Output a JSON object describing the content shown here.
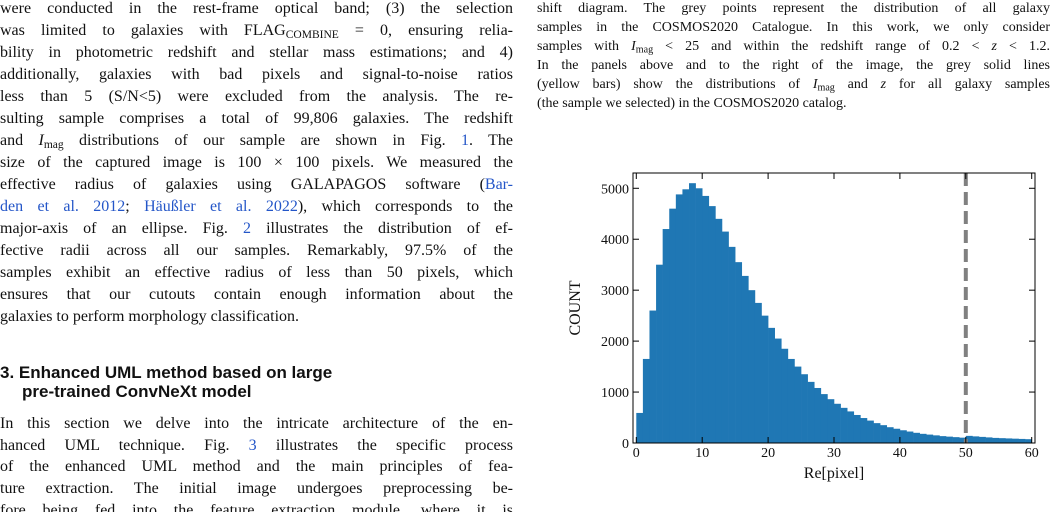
{
  "left": {
    "paragraph_1": [
      [
        "were conducted in the rest-frame optical band; (3) the selection"
      ],
      [
        "was limited to galaxies with FLAG",
        {
          "text": "COMBINE",
          "style": "sub"
        },
        " = 0, ensuring relia-"
      ],
      [
        "bility in photometric redshift and stellar mass estimations; and 4)"
      ],
      [
        "additionally, galaxies with bad pixels and signal-to-noise ratios"
      ],
      [
        "less than 5 (S/N<5) were excluded from the analysis. The re-"
      ],
      [
        "sulting sample comprises a total of 99,806 galaxies. The redshift"
      ],
      [
        "and ",
        {
          "text": "I",
          "style": "i"
        },
        {
          "text": "mag",
          "style": "sub"
        },
        " distributions of our sample are shown in Fig. ",
        {
          "text": "1",
          "style": "link"
        },
        ". The"
      ],
      [
        "size of the captured image is 100 × 100 pixels. We measured the"
      ],
      [
        "effective radius of galaxies using GALAPAGOS software (",
        {
          "text": "Bar-",
          "style": "link"
        }
      ],
      [
        {
          "text": "den et al. 2012",
          "style": "link"
        },
        "; ",
        {
          "text": "Häußler et al. 2022",
          "style": "link"
        },
        "), which corresponds to the"
      ],
      [
        "major-axis of an ellipse. Fig. ",
        {
          "text": "2",
          "style": "link"
        },
        " illustrates the distribution of ef-"
      ],
      [
        "fective radii across all our samples. Remarkably, 97.5% of the"
      ],
      [
        "samples exhibit an effective radius of less than 50 pixels, which"
      ],
      [
        "ensures that our cutouts contain enough information about the"
      ],
      [
        "galaxies to perform morphology classification."
      ]
    ],
    "heading": [
      [
        "3. Enhanced UML method based on large"
      ],
      [
        "pre-trained ConvNeXt model"
      ]
    ],
    "paragraph_2": [
      [
        "In this section we delve into the intricate architecture of the en-"
      ],
      [
        "hanced UML technique. Fig. ",
        {
          "text": "3",
          "style": "link"
        },
        " illustrates the specific process"
      ],
      [
        "of the enhanced UML method and the main principles of fea-"
      ],
      [
        "ture extraction. The initial image undergoes preprocessing be-"
      ],
      [
        "fore being fed into the feature extraction module, where it is"
      ]
    ]
  },
  "caption": [
    [
      "shift diagram. The grey points represent the distribution of all galaxy"
    ],
    [
      "samples in the COSMOS2020 Catalogue. In this work, we only consider"
    ],
    [
      "samples with ",
      {
        "text": "I",
        "style": "i"
      },
      {
        "text": "mag",
        "style": "sub"
      },
      " < 25 and within the redshift range of 0.2 < ",
      {
        "text": "z",
        "style": "i"
      },
      " < 1.2."
    ],
    [
      "In the panels above and to the right of the image, the grey solid lines"
    ],
    [
      "(yellow bars) show the distributions of ",
      {
        "text": "I",
        "style": "i"
      },
      {
        "text": "mag",
        "style": "sub"
      },
      " and ",
      {
        "text": "z",
        "style": "i"
      },
      " for all galaxy samples"
    ],
    [
      "(the sample we selected) in the COSMOS2020 catalog."
    ]
  ],
  "chart_data": {
    "type": "histogram",
    "xlabel": "Re[pixel]",
    "ylabel": "COUNT",
    "bins": [
      0,
      1,
      2,
      3,
      4,
      5,
      6,
      7,
      8,
      9,
      10,
      11,
      12,
      13,
      14,
      15,
      16,
      17,
      18,
      19,
      20,
      21,
      22,
      23,
      24,
      25,
      26,
      27,
      28,
      29,
      30,
      31,
      32,
      33,
      34,
      35,
      36,
      37,
      38,
      39,
      40,
      41,
      42,
      43,
      44,
      45,
      46,
      47,
      48,
      49,
      50,
      51,
      52,
      53,
      54,
      55,
      56,
      57,
      58,
      59,
      60
    ],
    "values": [
      590,
      1650,
      2600,
      3500,
      4200,
      4600,
      4880,
      4980,
      5100,
      5000,
      4850,
      4650,
      4400,
      4150,
      3850,
      3550,
      3280,
      3000,
      2750,
      2500,
      2260,
      2050,
      1850,
      1650,
      1500,
      1350,
      1200,
      1080,
      960,
      860,
      770,
      690,
      620,
      550,
      490,
      440,
      390,
      350,
      310,
      280,
      250,
      225,
      200,
      180,
      165,
      150,
      135,
      125,
      115,
      105,
      140,
      130,
      120,
      110,
      100,
      95,
      90,
      85,
      80,
      75
    ],
    "color": "#1f77b4",
    "xlim": [
      -0.5,
      60.5
    ],
    "ylim": [
      0,
      5300
    ],
    "xticks": [
      0,
      10,
      20,
      30,
      40,
      50,
      60
    ],
    "yticks": [
      0,
      1000,
      2000,
      3000,
      4000,
      5000
    ],
    "vline": {
      "x": 50,
      "color": "#808080",
      "style": "dashed"
    }
  }
}
